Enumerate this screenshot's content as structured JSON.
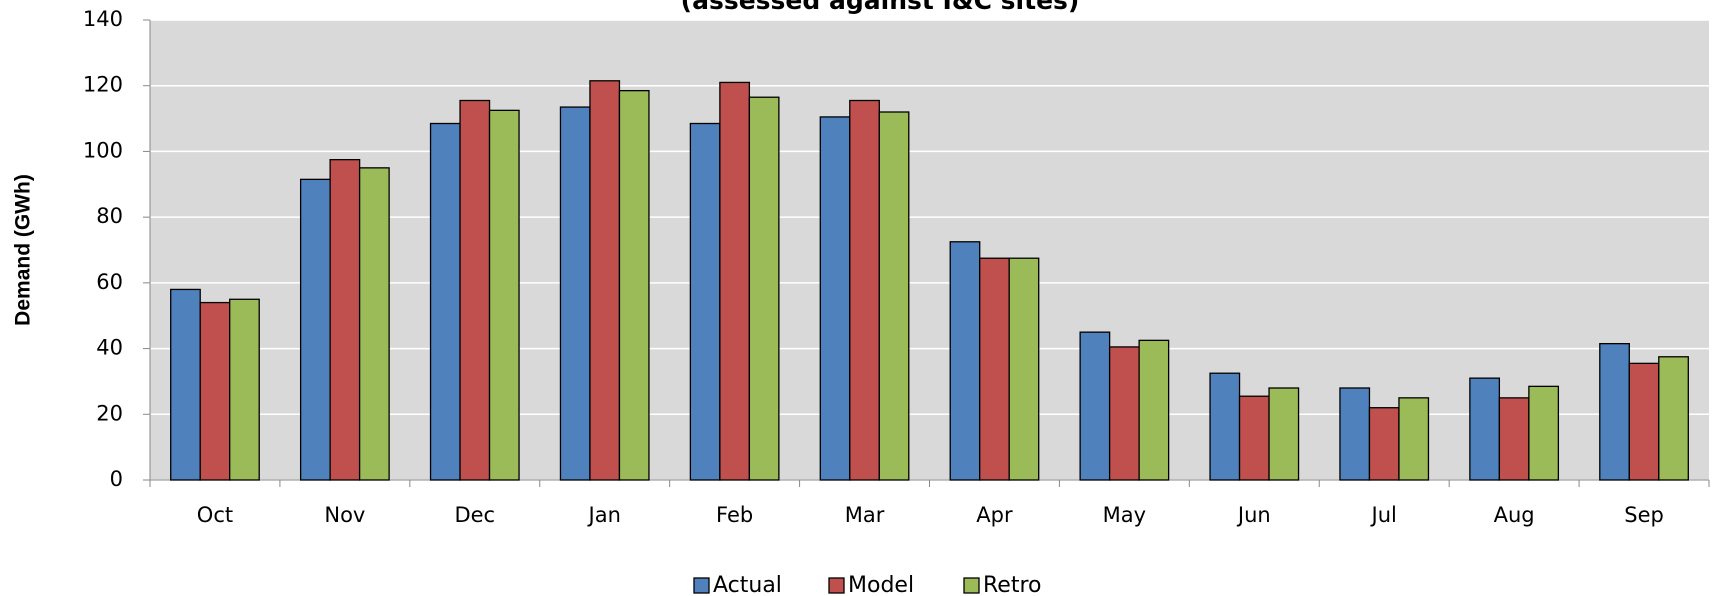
{
  "chart_data": {
    "type": "bar",
    "title": "(assessed against I&C sites)",
    "y_label": "Demand (GWh)",
    "categories": [
      "Oct",
      "Nov",
      "Dec",
      "Jan",
      "Feb",
      "Mar",
      "Apr",
      "May",
      "Jun",
      "Jul",
      "Aug",
      "Sep"
    ],
    "series": [
      {
        "name": "Actual",
        "color": "#4f81bd",
        "values": [
          58,
          91.5,
          108.5,
          113.5,
          108.5,
          110.5,
          72.5,
          45,
          32.5,
          28,
          31,
          41.5
        ]
      },
      {
        "name": "Model",
        "color": "#c0504d",
        "values": [
          54,
          97.5,
          115.5,
          121.5,
          121,
          115.5,
          67.5,
          40.5,
          25.5,
          22,
          25,
          35.5
        ]
      },
      {
        "name": "Retro",
        "color": "#9bbb59",
        "values": [
          55,
          95,
          112.5,
          118.5,
          116.5,
          112,
          67.5,
          42.5,
          28,
          25,
          28.5,
          37.5
        ]
      }
    ],
    "ylim": [
      0,
      140
    ],
    "yticks": [
      0,
      20,
      40,
      60,
      80,
      100,
      120,
      140
    ],
    "grid": true
  }
}
